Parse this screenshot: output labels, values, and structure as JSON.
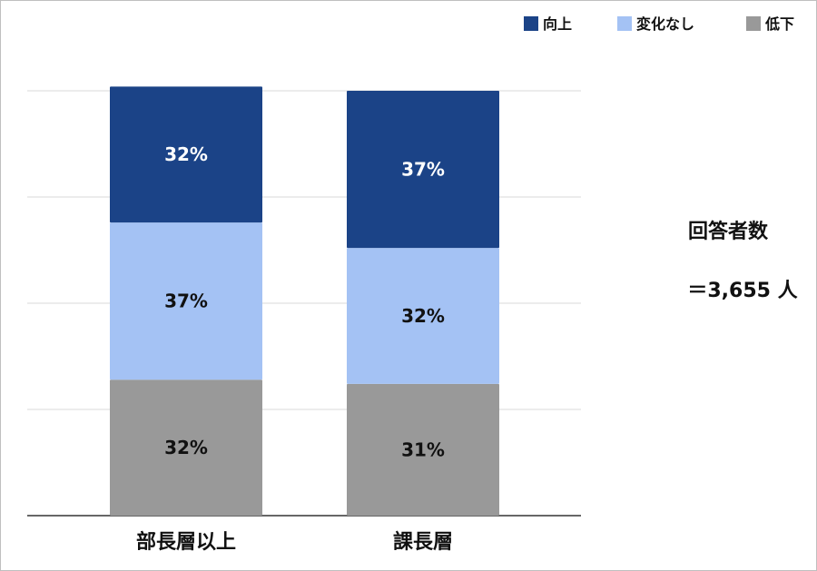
{
  "chart_data": {
    "type": "bar",
    "stacked": true,
    "categories": [
      "部長層以上",
      "課長層"
    ],
    "series": [
      {
        "name": "向上",
        "color": "#1b4387",
        "label_color": "#ffffff",
        "values": [
          32,
          37
        ],
        "labels": [
          "32%",
          "37%"
        ]
      },
      {
        "name": "変化なし",
        "color": "#a4c2f4",
        "label_color": "#111111",
        "values": [
          37,
          32
        ],
        "labels": [
          "37%",
          "32%"
        ]
      },
      {
        "name": "低下",
        "color": "#999999",
        "label_color": "#111111",
        "values": [
          32,
          31
        ],
        "labels": [
          "32%",
          "31%"
        ]
      }
    ],
    "stack_order": [
      "低下",
      "変化なし",
      "向上"
    ],
    "ylim": [
      0,
      100
    ],
    "grid": true,
    "legend_position": "top-right",
    "annotation": {
      "line1": "回答者数",
      "line2": "＝3,655 人"
    }
  }
}
